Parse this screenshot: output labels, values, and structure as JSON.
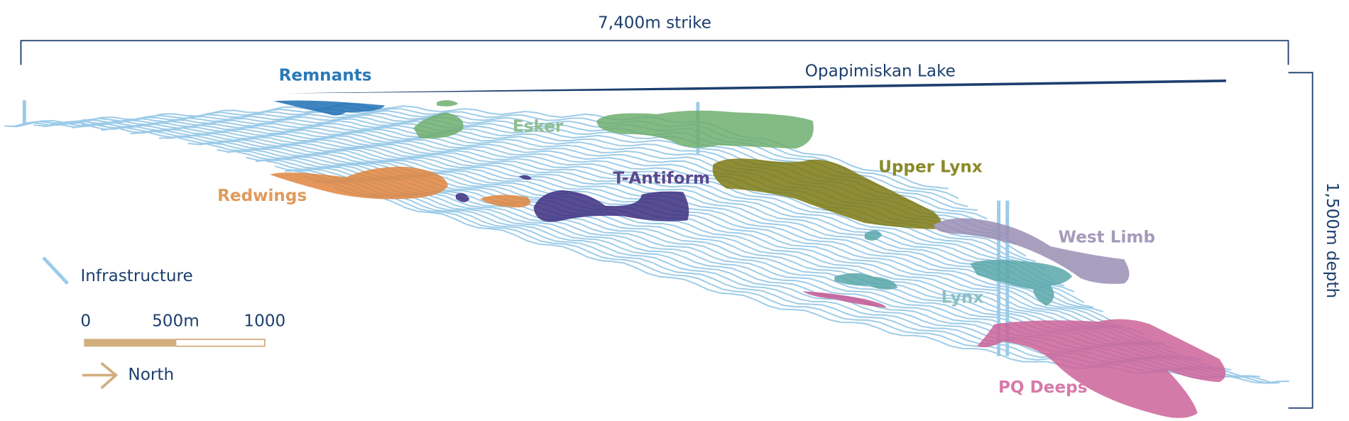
{
  "dimensions": {
    "strike": "7,400m strike",
    "depth": "1,500m depth"
  },
  "lake": "Opapimiskan Lake",
  "zones": [
    "Remnants",
    "Esker",
    "Redwings",
    "T-Antiform",
    "Upper Lynx",
    "West Limb",
    "Lynx",
    "PQ Deeps"
  ],
  "legend": {
    "infrastructure": "Infrastructure",
    "scale": [
      "0",
      "500m",
      "1000"
    ],
    "north": "North"
  }
}
